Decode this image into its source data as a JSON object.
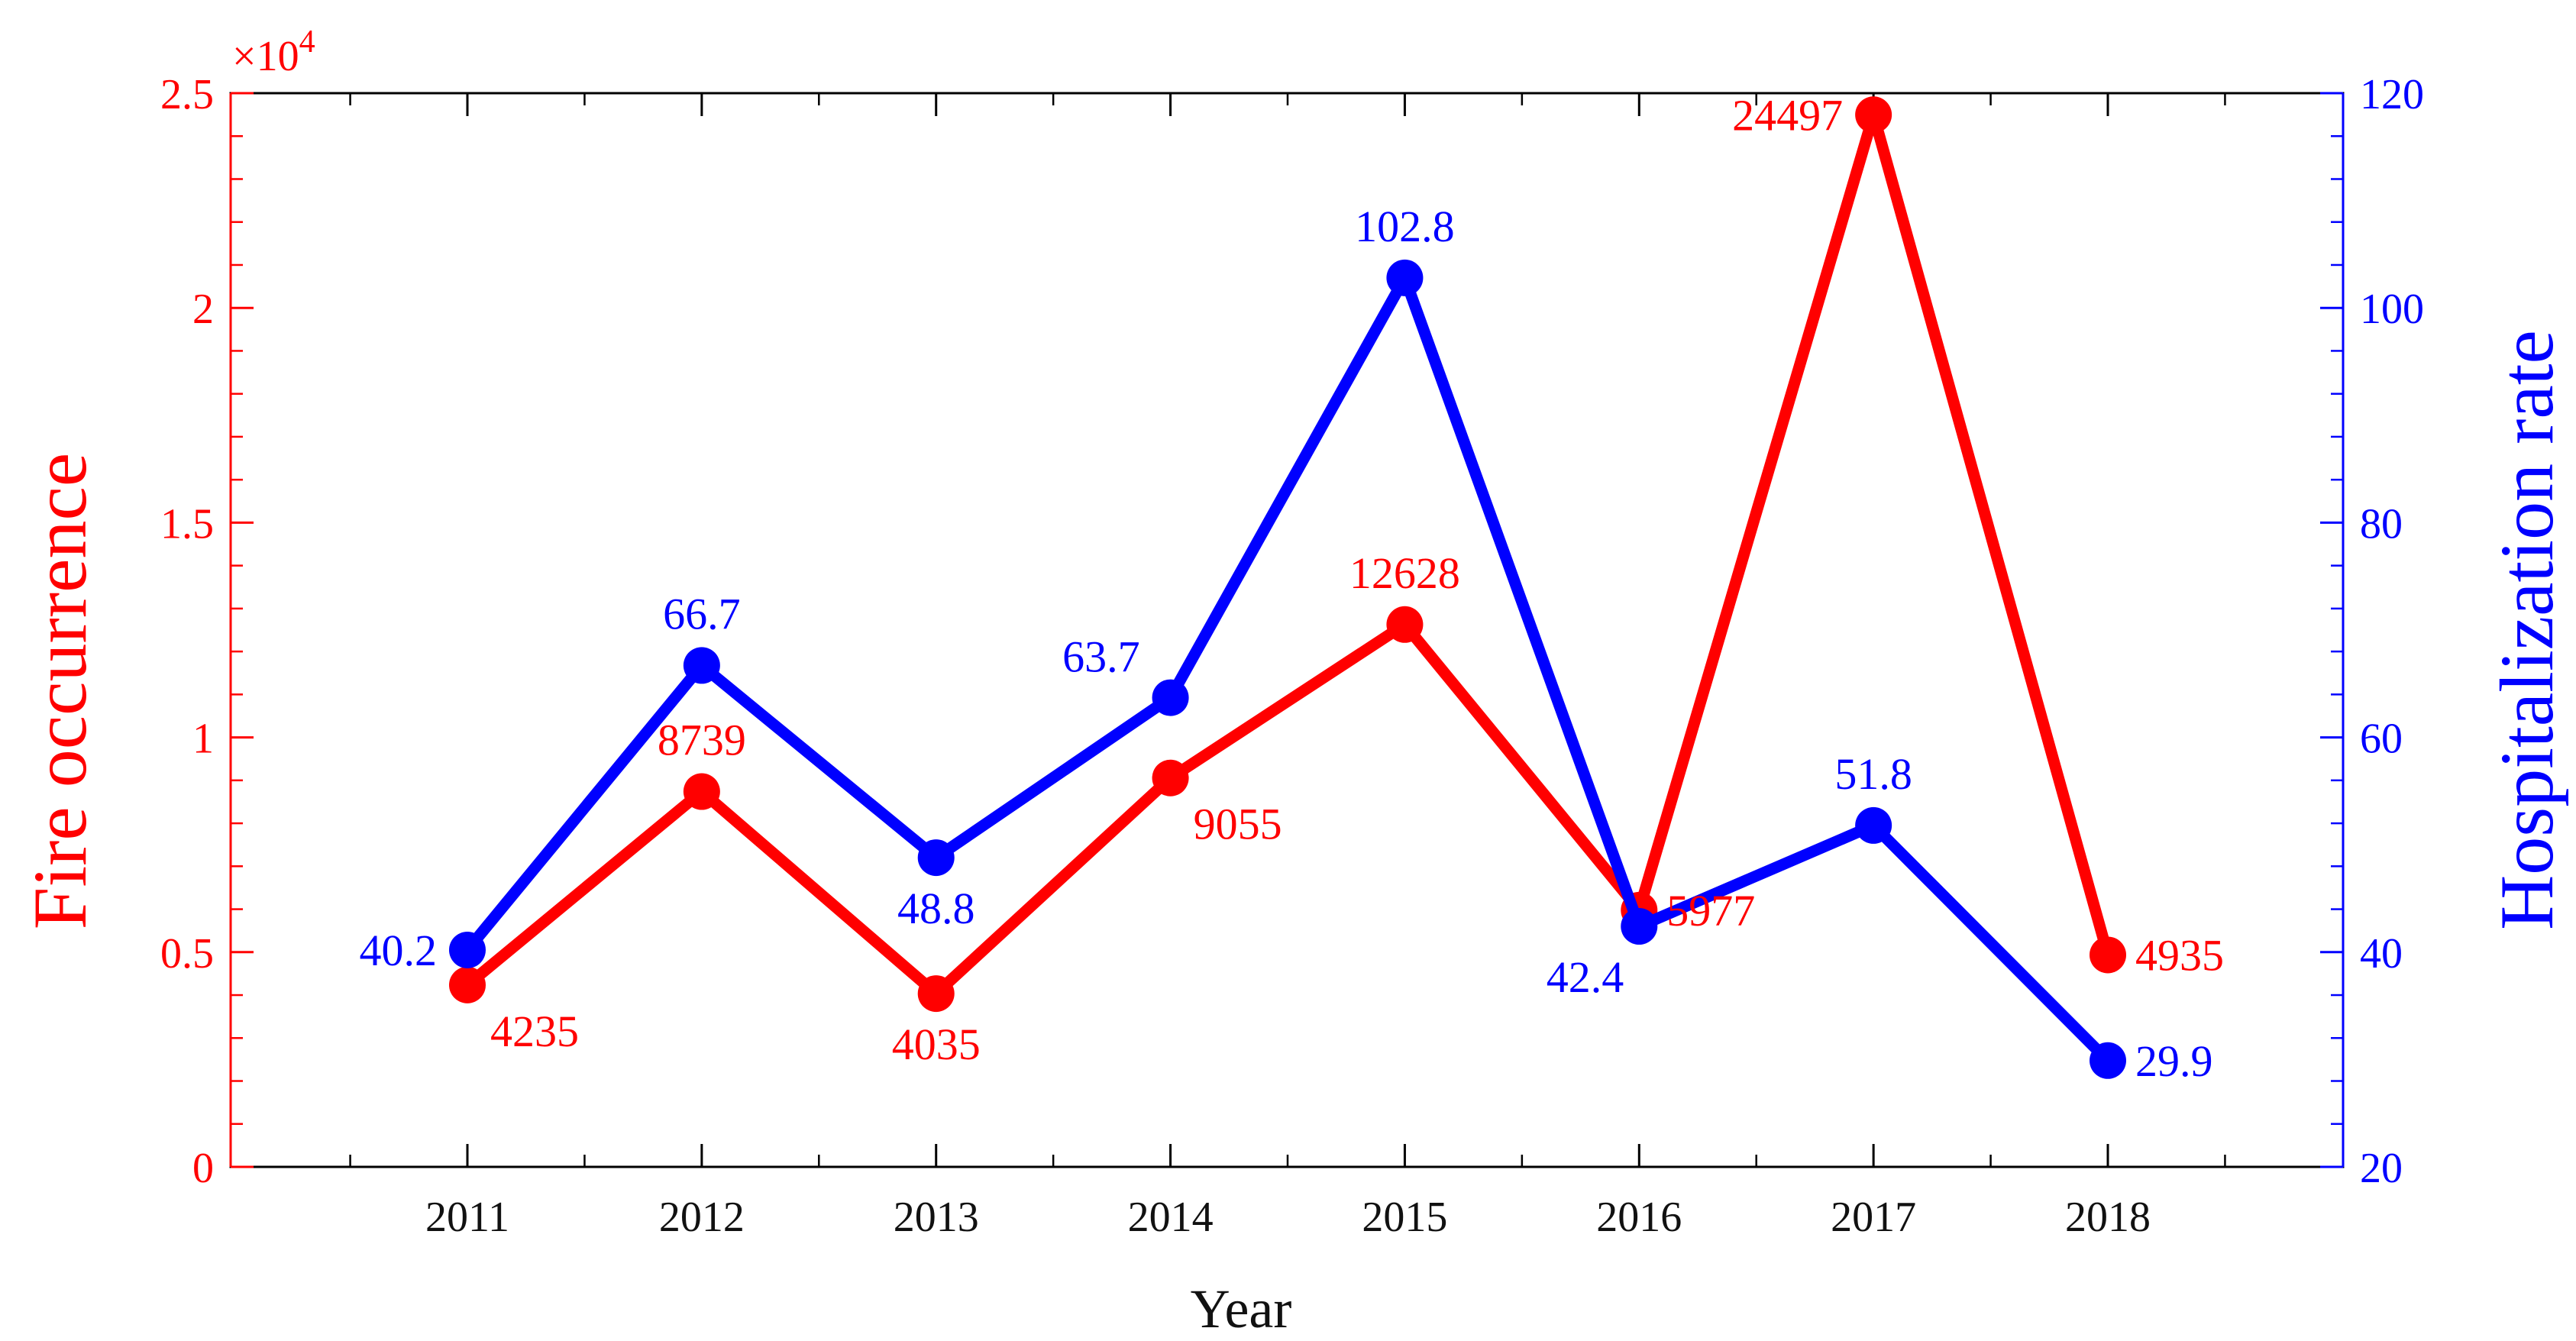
{
  "chart_data": {
    "type": "line",
    "xlabel": "Year",
    "categories": [
      "2011",
      "2012",
      "2013",
      "2014",
      "2015",
      "2016",
      "2017",
      "2018"
    ],
    "left_axis": {
      "label": "Fire occurrence",
      "color": "#ff0000",
      "ylim": [
        0,
        25000
      ],
      "ticks": [
        0,
        5000,
        10000,
        15000,
        20000,
        25000
      ],
      "tick_labels": [
        "0",
        "0.5",
        "1",
        "1.5",
        "2",
        "2.5"
      ],
      "multiplier_text": "×10",
      "multiplier_exp": "4"
    },
    "right_axis": {
      "label": "Hospitalization rate",
      "color": "#0000ff",
      "ylim": [
        20,
        120
      ],
      "ticks": [
        20,
        40,
        60,
        80,
        100,
        120
      ],
      "tick_labels": [
        "20",
        "40",
        "60",
        "80",
        "100",
        "120"
      ]
    },
    "series": [
      {
        "name": "Fire occurrence",
        "axis": "left",
        "color": "#ff0000",
        "values": [
          4235,
          8739,
          4035,
          9055,
          12628,
          5977,
          24497,
          4935
        ],
        "labels": [
          "4235",
          "8739",
          "4035",
          "9055",
          "12628",
          "5977",
          "24497",
          "4935"
        ],
        "label_pos": [
          "below-right",
          "above",
          "below",
          "below-right",
          "above",
          "right",
          "left",
          "right"
        ]
      },
      {
        "name": "Hospitalization rate",
        "axis": "right",
        "color": "#0000ff",
        "values": [
          40.2,
          66.7,
          48.8,
          63.7,
          102.8,
          42.4,
          51.8,
          29.9
        ],
        "labels": [
          "40.2",
          "66.7",
          "48.8",
          "63.7",
          "102.8",
          "42.4",
          "51.8",
          "29.9"
        ],
        "label_pos": [
          "left",
          "above",
          "below",
          "above-left",
          "above",
          "below-left",
          "above",
          "right"
        ]
      }
    ]
  }
}
